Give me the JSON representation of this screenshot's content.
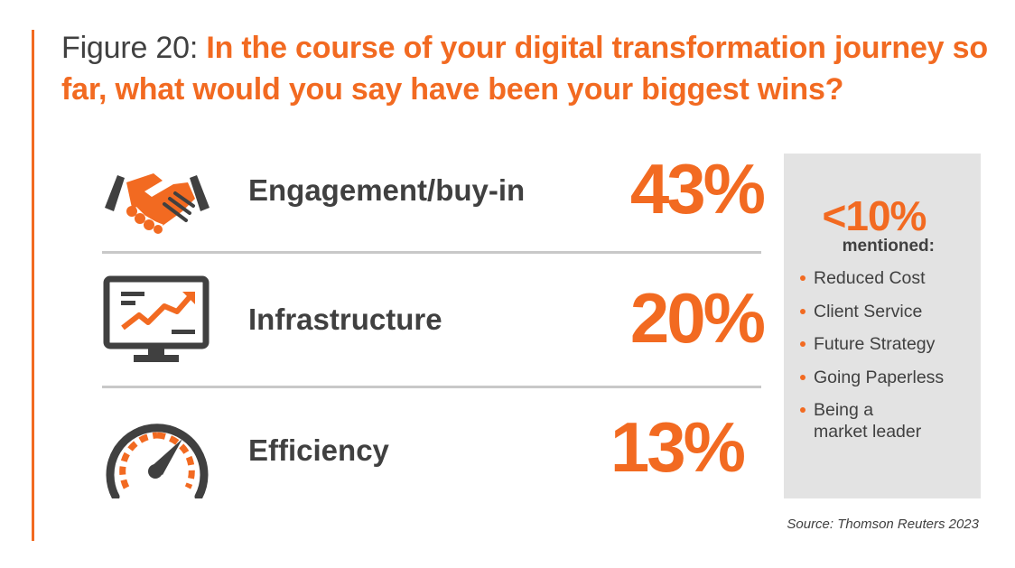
{
  "title": {
    "prefix": "Figure 20:",
    "question": "In the course of your digital transformation journey so far, what would you say have been your biggest wins?"
  },
  "colors": {
    "accent": "#f26a21",
    "text": "#404040",
    "divider": "#c8c8c8",
    "panel": "#e3e3e3"
  },
  "chart_data": {
    "type": "table",
    "title": "In the course of your digital transformation journey so far, what would you say have been your biggest wins?",
    "categories": [
      "Engagement/buy-in",
      "Infrastructure",
      "Efficiency"
    ],
    "values": [
      43,
      20,
      13
    ],
    "unit": "%",
    "rows": [
      {
        "icon": "handshake-icon",
        "label": "Engagement/buy-in",
        "value": "43%"
      },
      {
        "icon": "monitor-chart-icon",
        "label": "Infrastructure",
        "value": "20%"
      },
      {
        "icon": "speedometer-icon",
        "label": "Efficiency",
        "value": "13%"
      }
    ],
    "other_mentions": {
      "headline": "<10%",
      "subhead": "mentioned:",
      "items": [
        "Reduced Cost",
        "Client Service",
        "Future Strategy",
        "Going Paperless",
        "Being a market leader"
      ]
    },
    "source": "Source: Thomson Reuters 2023"
  }
}
